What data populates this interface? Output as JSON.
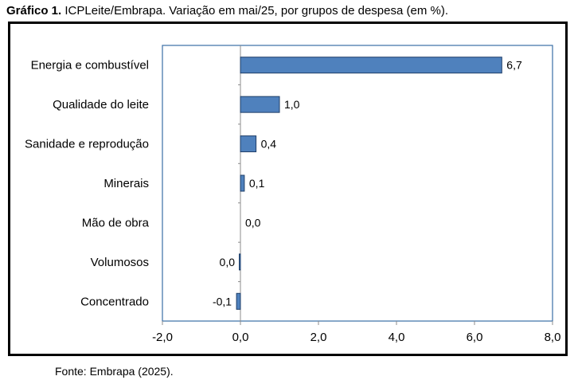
{
  "caption": {
    "label": "Gráfico 1.",
    "text": "ICPLeite/Embrapa. Variação em mai/25, por grupos de despesa (em %)."
  },
  "source": "Fonte: Embrapa (2025).",
  "colors": {
    "bar_fill": "#4f81bd",
    "bar_stroke": "#1f3e68",
    "plot_border": "#3a6ea5",
    "axis": "#8c8c8c"
  },
  "chart_data": {
    "type": "bar",
    "orientation": "horizontal",
    "categories": [
      "Energia e combustível",
      "Qualidade do leite",
      "Sanidade e reprodução",
      "Minerais",
      "Mão de obra",
      "Volumosos",
      "Concentrado"
    ],
    "values": [
      6.7,
      1.0,
      0.4,
      0.1,
      0.0,
      -0.02,
      -0.1
    ],
    "data_labels": [
      "6,7",
      "1,0",
      "0,4",
      "0,1",
      "0,0",
      "0,0",
      "-0,1"
    ],
    "xlim": [
      -2,
      8
    ],
    "xticks": [
      -2,
      0,
      2,
      4,
      6,
      8
    ],
    "xtick_labels": [
      "-2,0",
      "0,0",
      "2,0",
      "4,0",
      "6,0",
      "8,0"
    ],
    "grid": false,
    "legend": "none"
  }
}
